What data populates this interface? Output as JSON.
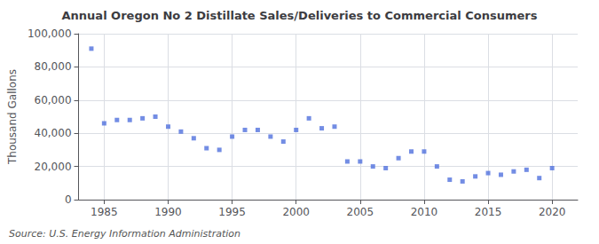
{
  "chart_data": {
    "type": "scatter",
    "title": "Annual Oregon No 2 Distillate Sales/Deliveries to Commercial Consumers",
    "ylabel": "Thousand Gallons",
    "source": "Source: U.S. Energy Information Administration",
    "marker": "square",
    "x": [
      1984,
      1985,
      1986,
      1987,
      1988,
      1989,
      1990,
      1991,
      1992,
      1993,
      1994,
      1995,
      1996,
      1997,
      1998,
      1999,
      2000,
      2001,
      2002,
      2003,
      2004,
      2005,
      2006,
      2007,
      2008,
      2009,
      2010,
      2011,
      2012,
      2013,
      2014,
      2015,
      2016,
      2017,
      2018,
      2019,
      2020
    ],
    "values": [
      91000,
      46000,
      48000,
      48000,
      49000,
      50000,
      44000,
      41000,
      37000,
      31000,
      30000,
      38000,
      42000,
      42000,
      38000,
      35000,
      42000,
      49000,
      43000,
      44000,
      23000,
      23000,
      20000,
      19000,
      25000,
      29000,
      29000,
      20000,
      12000,
      11000,
      14000,
      16000,
      15000,
      17000,
      18000,
      13000,
      19000
    ],
    "xlim": [
      1983,
      2022
    ],
    "xticks": [
      1985,
      1990,
      1995,
      2000,
      2005,
      2010,
      2015,
      2020
    ],
    "ylim": [
      0,
      100000
    ],
    "yticks": [
      0,
      {
        "value": 20000,
        "label": "20,000"
      },
      {
        "value": 40000,
        "label": "40,000"
      },
      {
        "value": 60000,
        "label": "60,000"
      },
      {
        "value": 80000,
        "label": "80,000"
      },
      {
        "value": 100000,
        "label": "100,000"
      }
    ],
    "grid": true
  }
}
